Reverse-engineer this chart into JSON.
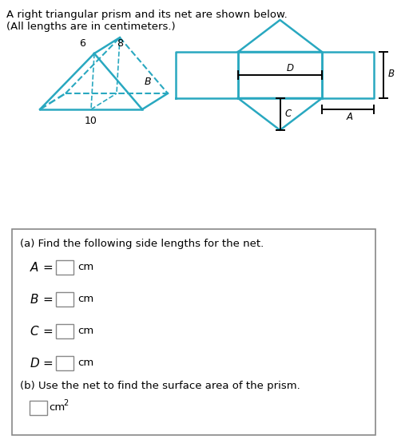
{
  "title_line1": "A right triangular prism and its net are shown below.",
  "title_line2": "(All lengths are in centimeters.)",
  "bg_color": "#ffffff",
  "text_color": "#000000",
  "shape_color": "#29a8c0",
  "label_6": "6",
  "label_8": "8",
  "label_10": "10",
  "label_B_prism": "B",
  "entries": [
    "A",
    "B",
    "C",
    "D"
  ],
  "part_a_header": "(a) Find the following side lengths for the net.",
  "part_b_header": "(b) Use the net to find the surface area of the prism.",
  "cm_label": "cm",
  "cm2_label": "cm"
}
